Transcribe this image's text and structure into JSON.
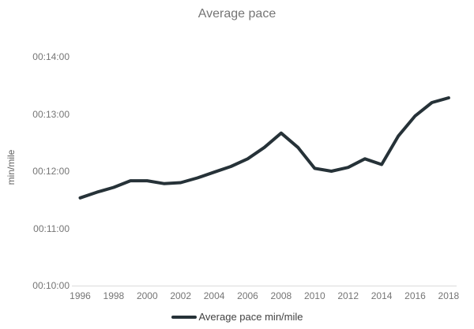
{
  "title": "Average pace",
  "legend": {
    "label": "Average pace min/mile"
  },
  "colors": {
    "series": "#263238",
    "axis_line": "#dadada",
    "tick_text": "#757575",
    "title_text": "#757575",
    "y_axis_title_text": "#616161",
    "legend_text": "#424242",
    "background": "#ffffff"
  },
  "chart_data": {
    "type": "line",
    "title": "Average pace",
    "xlabel": "",
    "ylabel": "min/mile",
    "x": [
      1996,
      1997,
      1998,
      1999,
      2000,
      2001,
      2002,
      2003,
      2004,
      2005,
      2006,
      2007,
      2008,
      2009,
      2010,
      2011,
      2012,
      2013,
      2014,
      2015,
      2016,
      2017,
      2018
    ],
    "series": [
      {
        "name": "Average pace min/mile",
        "values": [
          "00:11:32",
          "00:11:38",
          "00:11:43",
          "00:11:50",
          "00:11:50",
          "00:11:47",
          "00:11:48",
          "00:11:53",
          "00:11:59",
          "00:12:05",
          "00:12:13",
          "00:12:25",
          "00:12:40",
          "00:12:25",
          "00:12:03",
          "00:12:00",
          "00:12:04",
          "00:12:13",
          "00:12:07",
          "00:12:37",
          "00:12:58",
          "00:13:12",
          "00:13:17"
        ]
      }
    ],
    "x_tick_labels": [
      "1996",
      "1998",
      "2000",
      "2002",
      "2004",
      "2006",
      "2008",
      "2010",
      "2012",
      "2014",
      "2016",
      "2018"
    ],
    "y_tick_labels": [
      "00:14:00",
      "00:13:00",
      "00:12:00",
      "00:11:00",
      "00:10:00"
    ],
    "ylim": [
      "00:10:00",
      "00:14:00"
    ],
    "grid": false,
    "legend_position": "bottom"
  }
}
